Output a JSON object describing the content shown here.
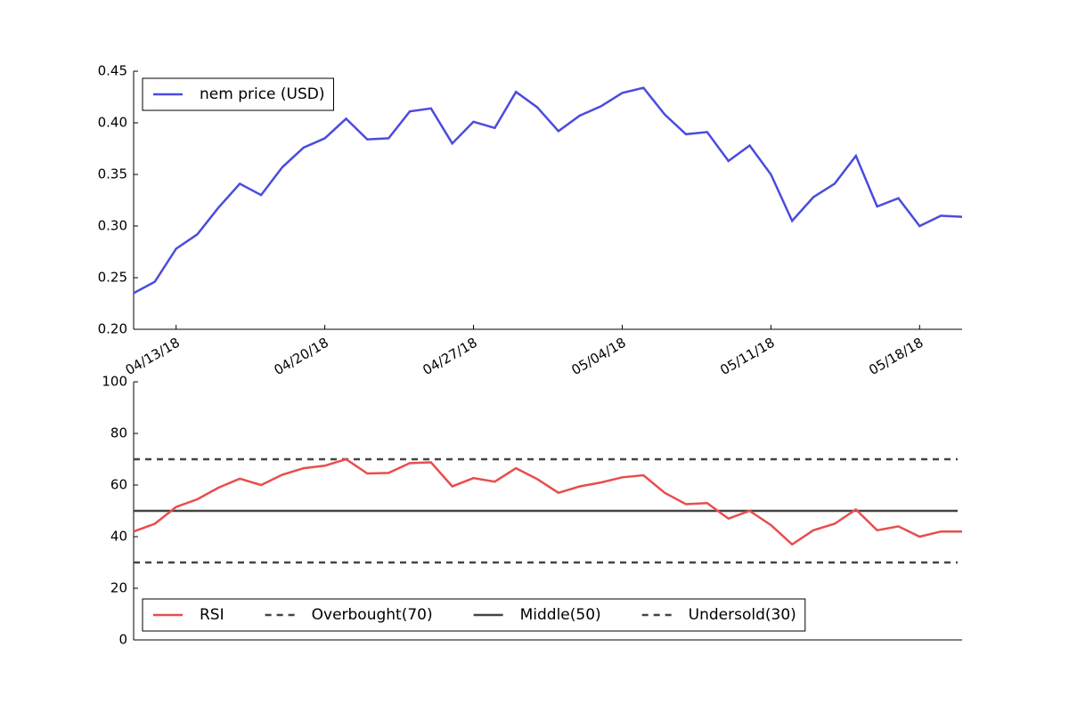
{
  "chart_data": [
    {
      "type": "line",
      "x": [
        "04/11/18",
        "04/12/18",
        "04/13/18",
        "04/14/18",
        "04/15/18",
        "04/16/18",
        "04/17/18",
        "04/18/18",
        "04/19/18",
        "04/20/18",
        "04/21/18",
        "04/22/18",
        "04/23/18",
        "04/24/18",
        "04/25/18",
        "04/26/18",
        "04/27/18",
        "04/28/18",
        "04/29/18",
        "04/30/18",
        "05/01/18",
        "05/02/18",
        "05/03/18",
        "05/04/18",
        "05/05/18",
        "05/06/18",
        "05/07/18",
        "05/08/18",
        "05/09/18",
        "05/10/18",
        "05/11/18",
        "05/12/18",
        "05/13/18",
        "05/14/18",
        "05/15/18",
        "05/16/18",
        "05/17/18",
        "05/18/18",
        "05/19/18",
        "05/20/18"
      ],
      "series": [
        {
          "name": "nem price (USD)",
          "color": "#4b4bdf",
          "values": [
            0.235,
            0.246,
            0.278,
            0.292,
            0.318,
            0.341,
            0.33,
            0.357,
            0.376,
            0.385,
            0.404,
            0.384,
            0.385,
            0.411,
            0.414,
            0.38,
            0.401,
            0.395,
            0.43,
            0.415,
            0.392,
            0.407,
            0.416,
            0.429,
            0.434,
            0.408,
            0.389,
            0.391,
            0.363,
            0.378,
            0.35,
            0.305,
            0.328,
            0.341,
            0.368,
            0.319,
            0.327,
            0.3,
            0.31,
            0.309
          ]
        }
      ],
      "xlim": [
        "04/11/18",
        "05/20/18"
      ],
      "xticks": [
        "04/13/18",
        "04/20/18",
        "04/27/18",
        "05/04/18",
        "05/11/18",
        "05/18/18"
      ],
      "ylim": [
        0.2,
        0.45
      ],
      "yticks": [
        {
          "value": 0.2,
          "label": "0.20"
        },
        0.25,
        {
          "value": 0.3,
          "label": "0.30"
        },
        0.35,
        {
          "value": 0.4,
          "label": "0.40"
        },
        0.45
      ],
      "legend": "upper left"
    },
    {
      "type": "line",
      "x": [
        "04/11/18",
        "04/12/18",
        "04/13/18",
        "04/14/18",
        "04/15/18",
        "04/16/18",
        "04/17/18",
        "04/18/18",
        "04/19/18",
        "04/20/18",
        "04/21/18",
        "04/22/18",
        "04/23/18",
        "04/24/18",
        "04/25/18",
        "04/26/18",
        "04/27/18",
        "04/28/18",
        "04/29/18",
        "04/30/18",
        "05/01/18",
        "05/02/18",
        "05/03/18",
        "05/04/18",
        "05/05/18",
        "05/06/18",
        "05/07/18",
        "05/08/18",
        "05/09/18",
        "05/10/18",
        "05/11/18",
        "05/12/18",
        "05/13/18",
        "05/14/18",
        "05/15/18",
        "05/16/18",
        "05/17/18",
        "05/18/18",
        "05/19/18",
        "05/20/18"
      ],
      "series": [
        {
          "name": "RSI",
          "color": "#e84d4d",
          "values": [
            42,
            45,
            51.5,
            54.5,
            59,
            62.5,
            60,
            64,
            66.5,
            67.5,
            70,
            64.5,
            64.7,
            68.5,
            68.8,
            59.5,
            62.7,
            61.3,
            66.5,
            62.3,
            57,
            59.5,
            61,
            63,
            63.8,
            57,
            52.6,
            53,
            47,
            50,
            44.5,
            37,
            42.5,
            45,
            50.5,
            42.5,
            44,
            40,
            42,
            42
          ]
        }
      ],
      "hlines": [
        {
          "name": "Overbought(70)",
          "value": 70,
          "color": "#444444",
          "style": "dashed"
        },
        {
          "name": "Middle(50)",
          "value": 50,
          "color": "#444444",
          "style": "solid"
        },
        {
          "name": "Undersold(30)",
          "value": 30,
          "color": "#444444",
          "style": "dashed"
        }
      ],
      "xlim": [
        "04/11/18",
        "05/20/18"
      ],
      "ylim": [
        0,
        100
      ],
      "yticks": [
        0,
        20,
        40,
        60,
        80,
        100
      ],
      "legend": "lower left"
    }
  ]
}
